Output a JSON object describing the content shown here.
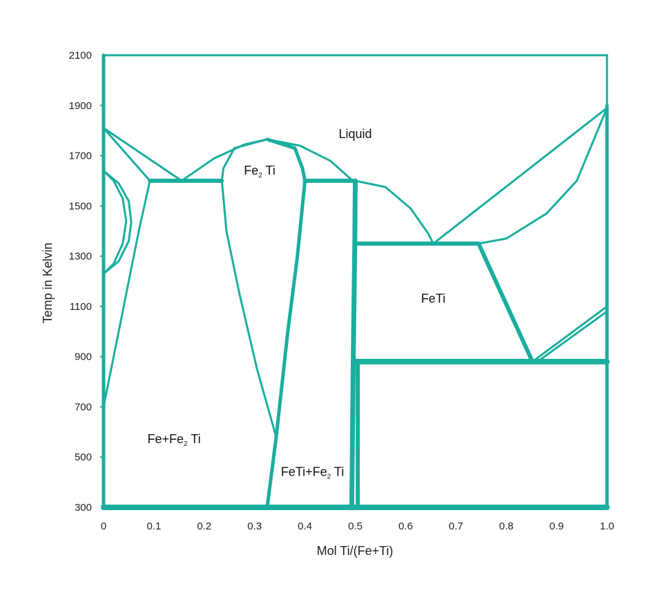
{
  "chart_data": {
    "type": "phase-diagram",
    "xlabel": "Mol Ti/(Fe+Ti)",
    "ylabel": "Temp in Kelvin",
    "xlim": [
      0,
      1.0
    ],
    "ylim": [
      300,
      2100
    ],
    "x_ticks": [
      "0",
      "0.1",
      "0.2",
      "0.3",
      "0.4",
      "0.5",
      "0.6",
      "0.7",
      "0.8",
      "0.9",
      "1.0"
    ],
    "y_ticks": [
      "300",
      "500",
      "700",
      "900",
      "1100",
      "1300",
      "1500",
      "1700",
      "1900",
      "2100"
    ],
    "x_tick_values": [
      0,
      0.1,
      0.2,
      0.3,
      0.4,
      0.5,
      0.6,
      0.7,
      0.8,
      0.9,
      1.0
    ],
    "y_tick_values": [
      300,
      500,
      700,
      900,
      1100,
      1300,
      1500,
      1700,
      1900,
      2100
    ],
    "line_color": "#1aae9f",
    "regions": [
      {
        "key": "liquid",
        "main": "Liquid",
        "sub": "",
        "tail": "",
        "x": 0.5,
        "y": 1770
      },
      {
        "key": "fe2ti",
        "main": "Fe",
        "sub": "2",
        "tail": " Ti",
        "x": 0.31,
        "y": 1625
      },
      {
        "key": "feti",
        "main": "FeTi",
        "sub": "",
        "tail": "",
        "x": 0.655,
        "y": 1115
      },
      {
        "key": "fe-fe2ti",
        "main": "Fe+Fe",
        "sub": "2",
        "tail": " Ti",
        "x": 0.14,
        "y": 555
      },
      {
        "key": "feti-fe2ti",
        "main": "FeTi+Fe",
        "sub": "2",
        "tail": " Ti",
        "x": 0.415,
        "y": 425
      }
    ],
    "curves": [
      {
        "name": "liquidus-fe-side",
        "w": 3,
        "d": [
          [
            0,
            1810
          ],
          [
            0.155,
            1600
          ]
        ]
      },
      {
        "name": "solidus-fe-side",
        "w": 3,
        "d": [
          [
            0,
            1810
          ],
          [
            0.092,
            1600
          ]
        ]
      },
      {
        "name": "gamma-loop-outer",
        "w": 3,
        "d": [
          [
            0,
            1640
          ],
          [
            0.02,
            1600
          ],
          [
            0.038,
            1530
          ],
          [
            0.045,
            1440
          ],
          [
            0.038,
            1350
          ],
          [
            0.02,
            1270
          ],
          [
            0,
            1230
          ]
        ]
      },
      {
        "name": "gamma-loop-inner",
        "w": 3,
        "d": [
          [
            0,
            1640
          ],
          [
            0.03,
            1590
          ],
          [
            0.05,
            1520
          ],
          [
            0.055,
            1435
          ],
          [
            0.05,
            1360
          ],
          [
            0.03,
            1280
          ],
          [
            0,
            1230
          ]
        ]
      },
      {
        "name": "alpha-solvus",
        "w": 3,
        "d": [
          [
            0.092,
            1600
          ],
          [
            0.07,
            1400
          ],
          [
            0.05,
            1200
          ],
          [
            0.03,
            1000
          ],
          [
            0.015,
            850
          ],
          [
            0,
            700
          ]
        ]
      },
      {
        "name": "eutectic-fe-fe2ti",
        "w": 6,
        "d": [
          [
            0.092,
            1600
          ],
          [
            0.235,
            1600
          ]
        ]
      },
      {
        "name": "liquidus-fe2ti-left",
        "w": 3,
        "d": [
          [
            0.155,
            1600
          ],
          [
            0.22,
            1690
          ],
          [
            0.28,
            1745
          ],
          [
            0.325,
            1765
          ]
        ]
      },
      {
        "name": "liquidus-fe2ti-right",
        "w": 3,
        "d": [
          [
            0.325,
            1765
          ],
          [
            0.39,
            1740
          ],
          [
            0.45,
            1680
          ],
          [
            0.495,
            1600
          ]
        ]
      },
      {
        "name": "fe2ti-left-boundary",
        "w": 3,
        "d": [
          [
            0.325,
            1765
          ],
          [
            0.26,
            1730
          ],
          [
            0.238,
            1650
          ],
          [
            0.235,
            1600
          ],
          [
            0.244,
            1400
          ],
          [
            0.27,
            1150
          ],
          [
            0.305,
            850
          ],
          [
            0.343,
            580
          ]
        ]
      },
      {
        "name": "fe2ti-right-boundary",
        "w": 5,
        "d": [
          [
            0.325,
            1765
          ],
          [
            0.38,
            1730
          ],
          [
            0.395,
            1650
          ],
          [
            0.4,
            1600
          ],
          [
            0.385,
            1300
          ],
          [
            0.366,
            1000
          ],
          [
            0.343,
            580
          ],
          [
            0.325,
            300
          ]
        ]
      },
      {
        "name": "eutectic-fe2ti-feti",
        "w": 6,
        "d": [
          [
            0.4,
            1600
          ],
          [
            0.495,
            1600
          ]
        ]
      },
      {
        "name": "feti-left-boundary",
        "w": 7,
        "d": [
          [
            0.493,
            300
          ],
          [
            0.496,
            900
          ],
          [
            0.499,
            1350
          ],
          [
            0.5,
            1600
          ]
        ]
      },
      {
        "name": "feti-liquidus",
        "w": 3,
        "d": [
          [
            0.5,
            1600
          ],
          [
            0.56,
            1575
          ],
          [
            0.61,
            1490
          ],
          [
            0.645,
            1390
          ],
          [
            0.655,
            1350
          ]
        ]
      },
      {
        "name": "peritectic-feti",
        "w": 6,
        "d": [
          [
            0.5,
            1350
          ],
          [
            0.745,
            1350
          ]
        ]
      },
      {
        "name": "liquidus-ti-side",
        "w": 3,
        "d": [
          [
            0.655,
            1350
          ],
          [
            1.0,
            1890
          ]
        ]
      },
      {
        "name": "solidus-ti-side",
        "w": 3,
        "d": [
          [
            0.745,
            1350
          ],
          [
            0.8,
            1370
          ],
          [
            0.88,
            1470
          ],
          [
            0.94,
            1600
          ],
          [
            1.0,
            1890
          ]
        ]
      },
      {
        "name": "feti-right-boundary",
        "w": 6,
        "d": [
          [
            0.745,
            1350
          ],
          [
            0.852,
            880
          ]
        ]
      },
      {
        "name": "eutectoid-line",
        "w": 8,
        "d": [
          [
            0.5,
            880
          ],
          [
            1.0,
            880
          ]
        ]
      },
      {
        "name": "beta-transus-upper",
        "w": 3,
        "d": [
          [
            0.852,
            880
          ],
          [
            1.0,
            1100
          ]
        ]
      },
      {
        "name": "beta-transus-lower",
        "w": 3,
        "d": [
          [
            0.862,
            880
          ],
          [
            1.0,
            1080
          ]
        ]
      },
      {
        "name": "feti-lower-boundary",
        "w": 6,
        "d": [
          [
            0.505,
            300
          ],
          [
            0.505,
            880
          ]
        ]
      },
      {
        "name": "bottom-line",
        "w": 8,
        "d": [
          [
            0,
            300
          ],
          [
            1.0,
            300
          ]
        ]
      },
      {
        "name": "left-axis-line",
        "w": 5,
        "d": [
          [
            0,
            300
          ],
          [
            0,
            2100
          ]
        ]
      },
      {
        "name": "right-axis-line",
        "w": 5,
        "d": [
          [
            1.0,
            300
          ],
          [
            1.0,
            1900
          ]
        ]
      }
    ]
  }
}
